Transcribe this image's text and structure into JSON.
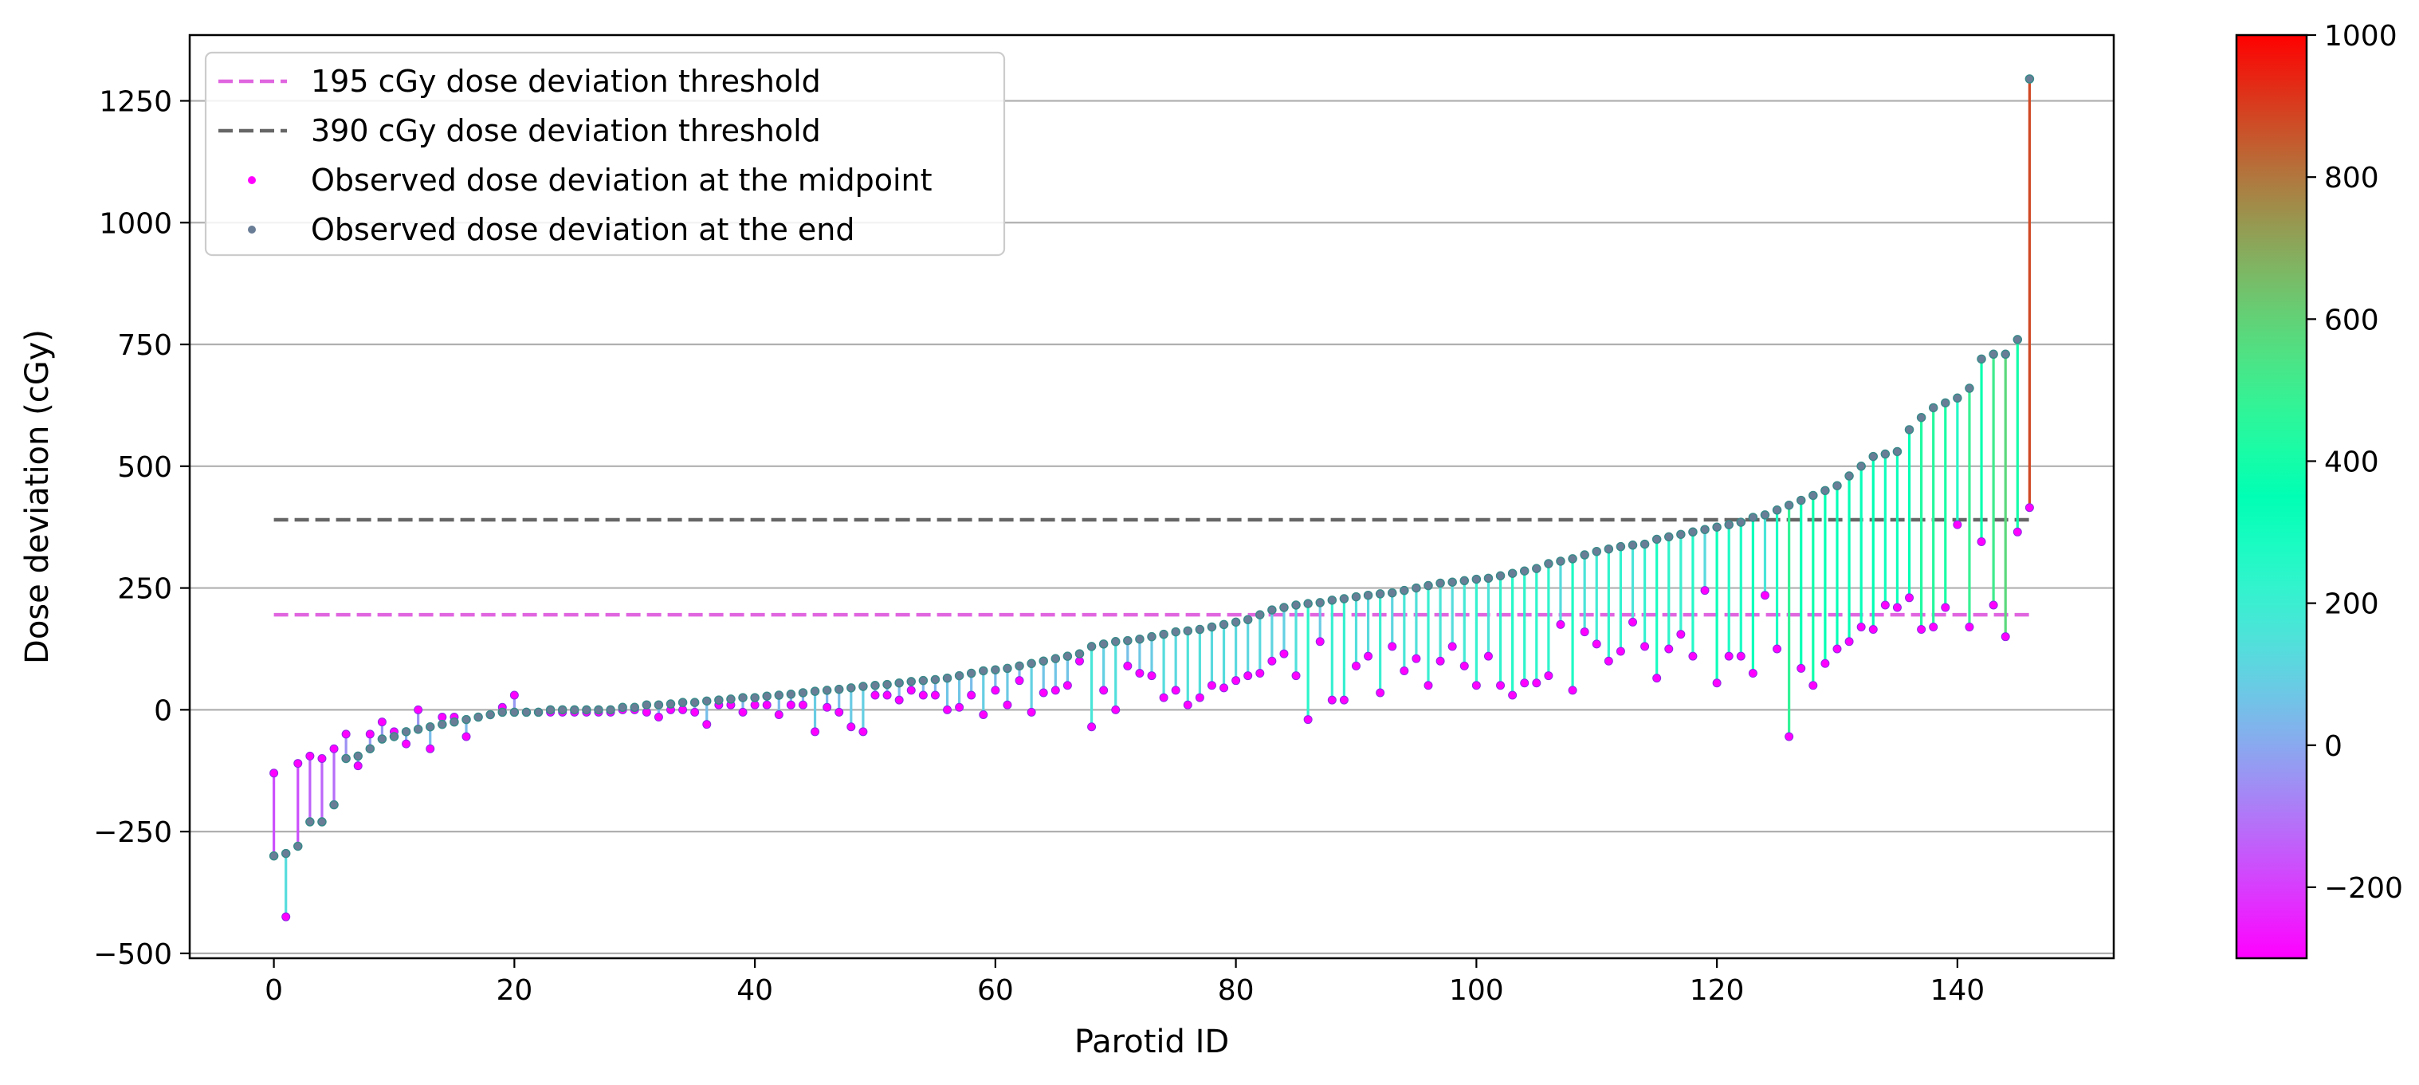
{
  "chart_data": {
    "type": "scatter",
    "xlabel": "Parotid ID",
    "ylabel": "Dose deviation (cGy)",
    "xlim": [
      -7,
      153
    ],
    "ylim": [
      -510,
      1385
    ],
    "x_ticks": [
      0,
      20,
      40,
      60,
      80,
      100,
      120,
      140
    ],
    "y_ticks": [
      -500,
      -250,
      0,
      250,
      500,
      750,
      1000,
      1250
    ],
    "grid": "horizontal",
    "legend_position": "top-left",
    "legend": [
      {
        "label": "195 cGy dose deviation threshold",
        "kind": "dashed-line",
        "color": "#e066e0"
      },
      {
        "label": "390 cGy dose deviation threshold",
        "kind": "dashed-line",
        "color": "#666666"
      },
      {
        "label": "Observed dose deviation at the midpoint",
        "kind": "point",
        "color": "#ff00ff"
      },
      {
        "label": "Observed dose deviation at the end",
        "kind": "point",
        "color": "#6a7d96"
      }
    ],
    "thresholds": [
      {
        "value": 195,
        "x_range": [
          0,
          146
        ],
        "color": "#e066e0"
      },
      {
        "value": 390,
        "x_range": [
          0,
          146
        ],
        "color": "#666666"
      }
    ],
    "colorbar": {
      "colormap": "rainbow",
      "range": [
        -300,
        1000
      ],
      "ticks": [
        -200,
        0,
        200,
        400,
        600,
        800,
        1000
      ],
      "tick_labels": [
        "−200",
        "0",
        "200",
        "400",
        "600",
        "800",
        "1000"
      ]
    },
    "series": [
      {
        "name": "Observed dose deviation at the midpoint",
        "values": [
          -130,
          -425,
          -110,
          -95,
          -100,
          -80,
          -50,
          -115,
          -50,
          -25,
          -45,
          -70,
          0,
          -80,
          -15,
          -15,
          -55,
          -15,
          -10,
          5,
          30,
          -5,
          -5,
          -5,
          -5,
          -5,
          -5,
          -5,
          -5,
          0,
          0,
          -5,
          -15,
          0,
          0,
          -5,
          -30,
          10,
          10,
          -5,
          10,
          10,
          -10,
          10,
          10,
          -45,
          5,
          -5,
          -35,
          -45,
          30,
          30,
          20,
          40,
          30,
          30,
          0,
          5,
          30,
          -10,
          40,
          10,
          60,
          -5,
          35,
          40,
          50,
          100,
          -35,
          40,
          0,
          90,
          75,
          70,
          25,
          40,
          10,
          25,
          50,
          45,
          60,
          70,
          75,
          100,
          115,
          70,
          -20,
          140,
          20,
          20,
          90,
          110,
          35,
          130,
          80,
          105,
          50,
          100,
          130,
          90,
          50,
          110,
          50,
          30,
          55,
          55,
          70,
          175,
          40,
          160,
          135,
          100,
          120,
          180,
          130,
          65,
          125,
          155,
          110,
          245,
          55,
          110,
          110,
          75,
          235,
          125,
          -55,
          85,
          50,
          95,
          125,
          140,
          170,
          165,
          215,
          210,
          230,
          165,
          170,
          210,
          380,
          170,
          345,
          215,
          150,
          365,
          415
        ]
      },
      {
        "name": "Observed dose deviation at the end",
        "values": [
          -300,
          -295,
          -280,
          -230,
          -230,
          -195,
          -100,
          -95,
          -80,
          -60,
          -55,
          -45,
          -40,
          -35,
          -30,
          -25,
          -20,
          -15,
          -10,
          -5,
          -5,
          -5,
          -5,
          0,
          0,
          0,
          0,
          0,
          0,
          5,
          5,
          10,
          10,
          12,
          15,
          15,
          18,
          20,
          22,
          25,
          25,
          28,
          30,
          32,
          35,
          38,
          40,
          42,
          45,
          48,
          50,
          52,
          55,
          58,
          60,
          62,
          65,
          70,
          75,
          80,
          82,
          85,
          90,
          95,
          100,
          105,
          110,
          115,
          130,
          135,
          140,
          142,
          145,
          150,
          155,
          160,
          162,
          165,
          170,
          175,
          180,
          185,
          195,
          205,
          210,
          215,
          218,
          220,
          225,
          228,
          232,
          235,
          238,
          240,
          245,
          250,
          255,
          260,
          262,
          265,
          268,
          270,
          275,
          280,
          285,
          290,
          300,
          305,
          310,
          318,
          325,
          330,
          335,
          338,
          340,
          350,
          355,
          360,
          365,
          370,
          375,
          380,
          385,
          395,
          400,
          410,
          420,
          430,
          440,
          450,
          460,
          480,
          500,
          520,
          525,
          530,
          575,
          600,
          620,
          630,
          640,
          660,
          720,
          730,
          730,
          760,
          1295
        ]
      }
    ]
  }
}
